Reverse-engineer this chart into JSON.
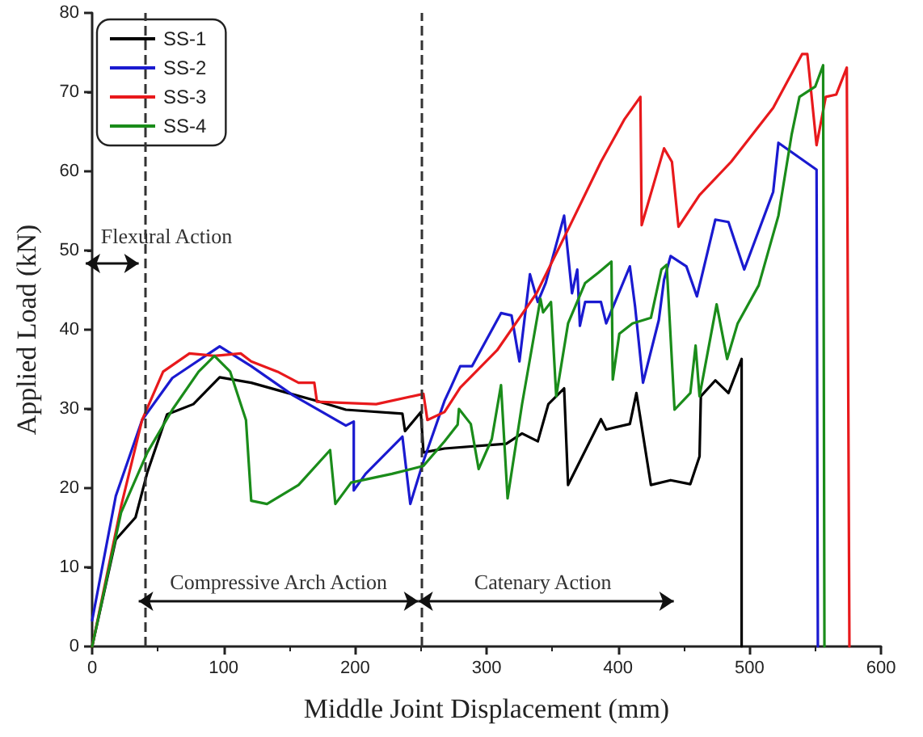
{
  "chart_data": {
    "type": "line",
    "xlabel": "Middle Joint Displacement (mm)",
    "ylabel": "Applied Load (kN)",
    "xlim": [
      0,
      600
    ],
    "xticks": [
      0,
      100,
      200,
      300,
      400,
      500,
      600
    ],
    "ylim": [
      0,
      80
    ],
    "yticks": [
      0,
      10,
      20,
      30,
      40,
      50,
      60,
      70,
      80
    ],
    "grid": false,
    "legend": "top left",
    "marker": "none",
    "line_style": "solid",
    "series": [
      {
        "name": "SS-1",
        "color": "#000000",
        "x": [
          0,
          18,
          33,
          42,
          57,
          77,
          97,
          121,
          149,
          169,
          193,
          236,
          238,
          250,
          252,
          268,
          315,
          327,
          339,
          347,
          359,
          362,
          387,
          391,
          409,
          414,
          425,
          440,
          455,
          462,
          463,
          474,
          484,
          494,
          494
        ],
        "values": [
          0,
          13.5,
          16.3,
          22,
          29.3,
          30.6,
          34,
          33.3,
          32,
          31.1,
          29.9,
          29.4,
          27.2,
          29.6,
          24.5,
          25,
          25.6,
          26.9,
          25.9,
          30.6,
          32.6,
          20.4,
          28.7,
          27.4,
          28.1,
          32,
          20.4,
          21,
          20.5,
          24,
          31.6,
          33.6,
          32,
          36.3,
          0
        ]
      },
      {
        "name": "SS-2",
        "color": "#1a1ad0",
        "x": [
          0,
          18,
          38,
          61,
          97,
          121,
          153,
          193,
          199,
          199,
          208,
          236,
          242,
          252,
          268,
          273,
          280,
          289,
          311,
          319,
          325,
          333,
          339,
          345,
          359,
          365,
          369,
          371,
          375,
          387,
          391,
          409,
          413,
          419,
          431,
          435,
          440,
          452,
          460,
          474,
          484,
          496,
          518,
          522,
          551,
          552
        ],
        "values": [
          3.3,
          19,
          28.6,
          33.9,
          37.9,
          35.4,
          31.7,
          27.9,
          28.4,
          19.7,
          21.8,
          26.5,
          18,
          23.4,
          31,
          32.8,
          35.4,
          35.4,
          42.1,
          41.8,
          36,
          47,
          43.5,
          45.9,
          54.4,
          44.6,
          47.6,
          40.5,
          43.5,
          43.5,
          40.8,
          48,
          42.9,
          33.3,
          41.2,
          46.3,
          49.3,
          48,
          44.2,
          53.9,
          53.6,
          47.6,
          57.4,
          63.6,
          60.2,
          0
        ]
      },
      {
        "name": "SS-3",
        "color": "#e8191c",
        "x": [
          0,
          22,
          38,
          54,
          74,
          93,
          113,
          121,
          141,
          157,
          169,
          171,
          216,
          252,
          255,
          268,
          280,
          308,
          338,
          363,
          387,
          405,
          417,
          418,
          435,
          441,
          446,
          462,
          486,
          518,
          540,
          544,
          551,
          558,
          566,
          574,
          576
        ],
        "values": [
          0,
          17.7,
          28.6,
          34.7,
          37,
          36.7,
          37,
          36,
          34.7,
          33.3,
          33.3,
          30.9,
          30.6,
          31.9,
          28.6,
          29.6,
          32.7,
          37.4,
          44.6,
          53,
          61.2,
          66.6,
          69.4,
          53.2,
          62.9,
          61.2,
          53,
          57,
          61.2,
          68,
          74.8,
          74.8,
          63.3,
          69.4,
          69.7,
          73.1,
          0
        ]
      },
      {
        "name": "SS-4",
        "color": "#1a8c1a",
        "x": [
          0,
          22,
          42,
          61,
          81,
          93,
          105,
          117,
          121,
          133,
          157,
          181,
          185,
          197,
          228,
          252,
          268,
          278,
          279,
          288,
          294,
          304,
          311,
          316,
          327,
          341,
          343,
          349,
          353,
          362,
          375,
          385,
          395,
          396,
          401,
          411,
          425,
          433,
          437,
          443,
          455,
          459,
          462,
          475,
          483,
          491,
          507,
          522,
          532,
          538,
          550,
          556,
          557
        ],
        "values": [
          0,
          16.9,
          24.5,
          29.9,
          34.7,
          36.7,
          34.7,
          28.6,
          18.4,
          18,
          20.4,
          24.8,
          18,
          20.7,
          21.8,
          22.8,
          25.9,
          28,
          30,
          28.1,
          22.4,
          26.2,
          33,
          18.7,
          30.6,
          43.9,
          42.2,
          43.5,
          31.6,
          40.8,
          45.9,
          47.2,
          48.6,
          33.7,
          39.5,
          40.8,
          41.5,
          47.6,
          48.2,
          29.9,
          32,
          38,
          31.6,
          43.2,
          36.3,
          40.8,
          45.6,
          54.4,
          64.6,
          69.4,
          70.7,
          73.4,
          0
        ]
      }
    ],
    "ref_lines": [
      {
        "axis": "x",
        "value": 40,
        "line_style": "dashed",
        "color": "#333333"
      },
      {
        "axis": "x",
        "value": 251,
        "line_style": "dashed",
        "color": "#333333"
      }
    ],
    "annotations": [
      "Flexural Action",
      "Compressive Arch Action",
      "Catenary Action"
    ]
  }
}
